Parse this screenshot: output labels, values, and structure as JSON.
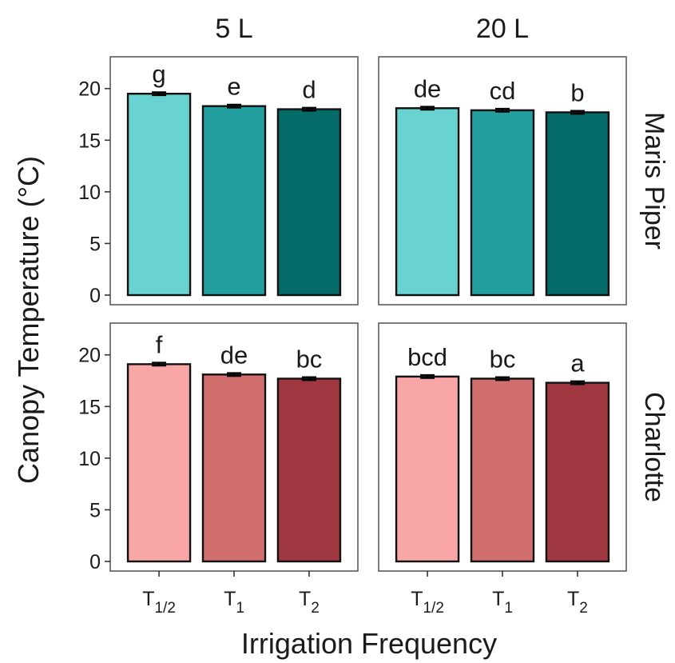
{
  "chart_data": {
    "type": "bar",
    "ylabel": "Canopy Temperature (°C)",
    "xlabel": "Irrigation Frequency",
    "ylim": [
      0,
      23
    ],
    "yticks": [
      0,
      5,
      10,
      15,
      20
    ],
    "categories": [
      {
        "base": "T",
        "sub": "1/2"
      },
      {
        "base": "T",
        "sub": "1"
      },
      {
        "base": "T",
        "sub": "2"
      }
    ],
    "columns": [
      "5 L",
      "20 L"
    ],
    "rows": [
      "Maris Piper",
      "Charlotte"
    ],
    "colors": {
      "Maris Piper": [
        "#68d3d1",
        "#229f9e",
        "#046b69"
      ],
      "Charlotte": [
        "#f8a6a6",
        "#d06e6d",
        "#9f3741"
      ]
    },
    "panels": [
      {
        "row": "Maris Piper",
        "column": "5 L",
        "values": [
          19.5,
          18.3,
          18.0
        ],
        "errors": [
          0.15,
          0.15,
          0.15
        ],
        "labels": [
          "g",
          "e",
          "d"
        ]
      },
      {
        "row": "Maris Piper",
        "column": "20 L",
        "values": [
          18.1,
          17.9,
          17.7
        ],
        "errors": [
          0.15,
          0.15,
          0.15
        ],
        "labels": [
          "de",
          "cd",
          "b"
        ]
      },
      {
        "row": "Charlotte",
        "column": "5 L",
        "values": [
          19.1,
          18.1,
          17.7
        ],
        "errors": [
          0.15,
          0.15,
          0.15
        ],
        "labels": [
          "f",
          "de",
          "bc"
        ]
      },
      {
        "row": "Charlotte",
        "column": "20 L",
        "values": [
          17.9,
          17.7,
          17.3
        ],
        "errors": [
          0.15,
          0.15,
          0.15
        ],
        "labels": [
          "bcd",
          "bc",
          "a"
        ]
      }
    ]
  }
}
